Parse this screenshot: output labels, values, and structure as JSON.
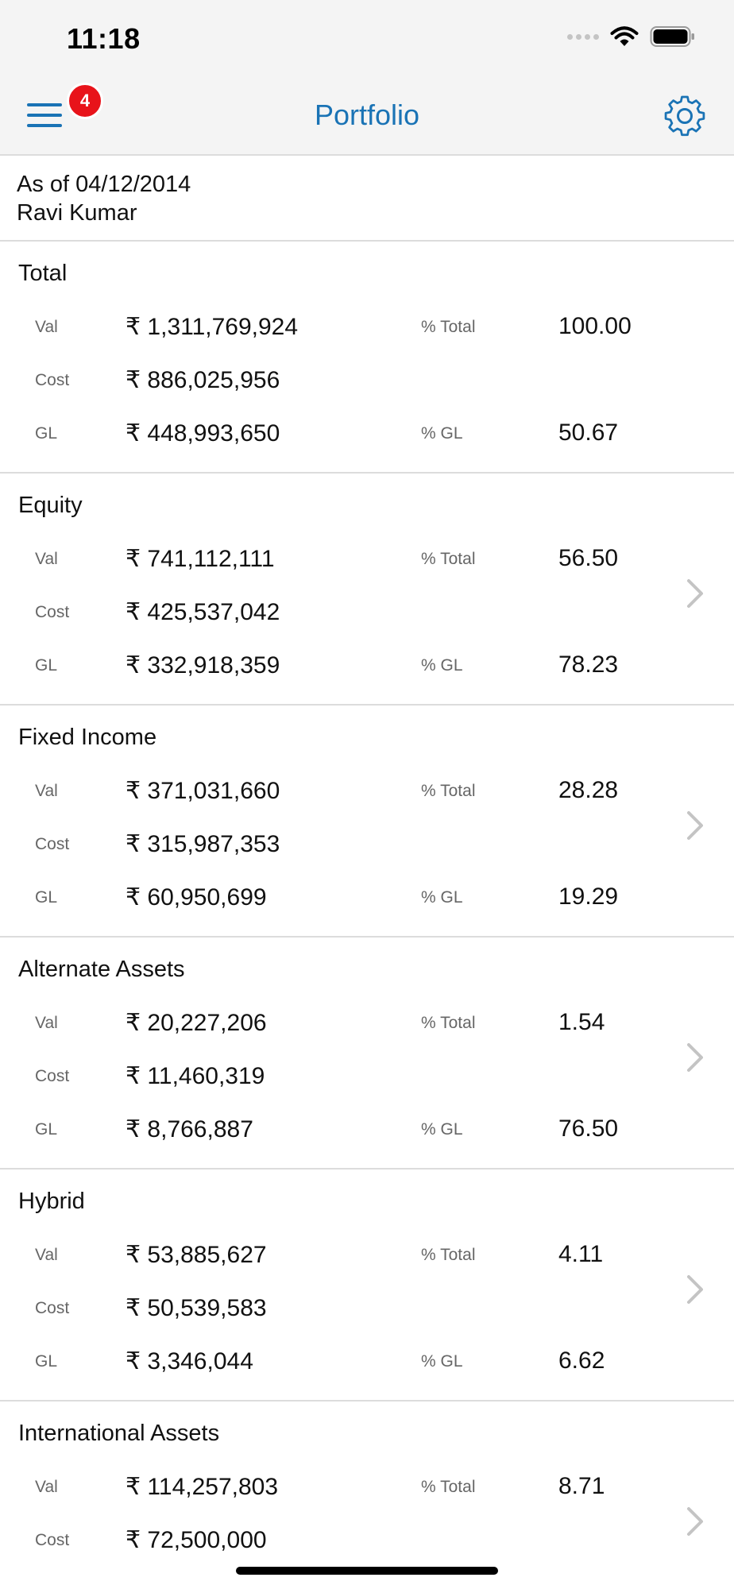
{
  "status_bar": {
    "time": "11:18"
  },
  "nav": {
    "title": "Portfolio",
    "badge_count": "4",
    "menu_icon": "hamburger-menu-icon",
    "settings_icon": "gear-icon"
  },
  "header": {
    "as_of": "As of 04/12/2014",
    "client_name": "Ravi Kumar"
  },
  "labels": {
    "val": "Val",
    "cost": "Cost",
    "gl": "GL",
    "pct_total": "% Total",
    "pct_gl": "% GL"
  },
  "colors": {
    "accent": "#1a73b5",
    "badge": "#e8131a",
    "divider": "#dcdcdc"
  },
  "sections": [
    {
      "title": "Total",
      "val": "₹ 1,311,769,924",
      "cost": "₹ 886,025,956",
      "gl": "₹ 448,993,650",
      "pct_total": "100.00",
      "pct_gl": "50.67"
    },
    {
      "title": "Equity",
      "val": "₹ 741,112,111",
      "cost": "₹ 425,537,042",
      "gl": "₹ 332,918,359",
      "pct_total": "56.50",
      "pct_gl": "78.23"
    },
    {
      "title": "Fixed Income",
      "val": "₹ 371,031,660",
      "cost": "₹ 315,987,353",
      "gl": "₹ 60,950,699",
      "pct_total": "28.28",
      "pct_gl": "19.29"
    },
    {
      "title": "Alternate Assets",
      "val": "₹ 20,227,206",
      "cost": "₹ 11,460,319",
      "gl": "₹ 8,766,887",
      "pct_total": "1.54",
      "pct_gl": "76.50"
    },
    {
      "title": "Hybrid",
      "val": "₹ 53,885,627",
      "cost": "₹ 50,539,583",
      "gl": "₹ 3,346,044",
      "pct_total": "4.11",
      "pct_gl": "6.62"
    },
    {
      "title": "International Assets",
      "val": "₹ 114,257,803",
      "cost": "₹ 72,500,000",
      "pct_total": "8.71"
    }
  ]
}
